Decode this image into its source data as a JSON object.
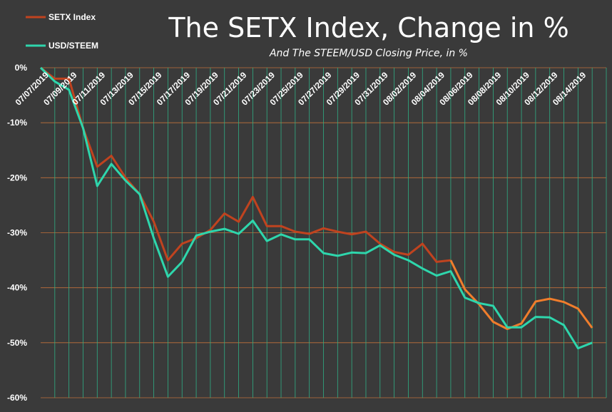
{
  "chart_data": {
    "type": "line",
    "title": "The SETX Index, Change in %",
    "subtitle": "And The STEEM/USD Closing Price, in %",
    "ylim": [
      -60,
      0
    ],
    "y_ticks": [
      "0%",
      "-10%",
      "-20%",
      "-30%",
      "-40%",
      "-50%",
      "-60%"
    ],
    "y_tick_values": [
      0,
      -10,
      -20,
      -30,
      -40,
      -50,
      -60
    ],
    "x_tick_labels": [
      "07/07/2019",
      "07/09/2019",
      "07/11/2019",
      "07/13/2019",
      "07/15/2019",
      "07/17/2019",
      "07/19/2019",
      "07/21/2019",
      "07/23/2019",
      "07/25/2019",
      "07/27/2019",
      "07/29/2019",
      "07/31/2019",
      "08/02/2019",
      "08/04/2019",
      "08/06/2019",
      "08/08/2019",
      "08/10/2019",
      "08/12/2019",
      "08/14/2019"
    ],
    "grid": {
      "horizontal": true,
      "vertical": true
    },
    "legend_position": "top-left",
    "colors": {
      "background": "#3a3a3a",
      "grid_horizontal": "#c2703a",
      "grid_vertical": "#2fae84",
      "setx": "#c0431f",
      "setx_late": "#f07d2c",
      "usd": "#2ed6ac"
    },
    "series": [
      {
        "name": "SETX Index",
        "color": "#c0431f",
        "values": [
          0,
          -2,
          -2,
          -11,
          -18,
          -16,
          -20,
          -23,
          -28,
          -35,
          -32,
          -31,
          -29.5,
          -26.5,
          -28,
          -23.5,
          -28.8,
          -28.8,
          -29.8,
          -30.2,
          -29.2,
          -29.8,
          -30.3,
          -29.8,
          -32,
          -33.5,
          -34,
          -32,
          -35.3,
          -35,
          -40.3,
          -43,
          -46.2,
          -47.5,
          -46.5,
          -42.5,
          -42,
          -42.6,
          -43.8,
          -47.3
        ]
      },
      {
        "name": "USD/STEEM",
        "color": "#2ed6ac",
        "values": [
          0,
          -2.5,
          -4,
          -11,
          -21.5,
          -17.5,
          -20.5,
          -23,
          -31,
          -38,
          -35.3,
          -30.5,
          -29.8,
          -29.3,
          -30.2,
          -27.8,
          -31.5,
          -30.3,
          -31.2,
          -31.2,
          -33.7,
          -34.2,
          -33.6,
          -33.7,
          -32.3,
          -34,
          -35,
          -36.5,
          -37.8,
          -37,
          -41.8,
          -42.8,
          -43.3,
          -47.2,
          -47.2,
          -45.3,
          -45.4,
          -46.8,
          -51,
          -50
        ]
      }
    ]
  }
}
